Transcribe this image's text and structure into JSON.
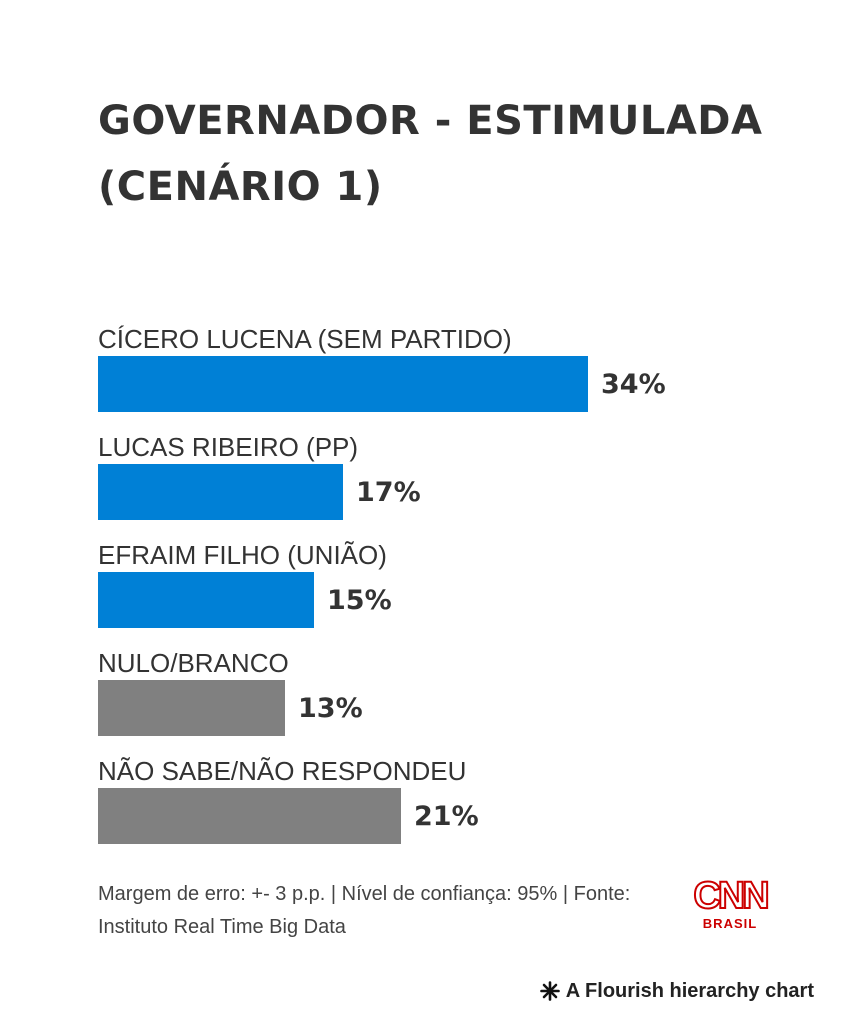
{
  "chart_data": {
    "type": "bar",
    "orientation": "horizontal",
    "title": "GOVERNADOR - ESTIMULADA (CENÁRIO 1)",
    "categories": [
      "CÍCERO LUCENA (SEM PARTIDO)",
      "LUCAS RIBEIRO (PP)",
      "EFRAIM FILHO (UNIÃO)",
      "NULO/BRANCO",
      "NÃO SABE/NÃO RESPONDEU"
    ],
    "values": [
      34,
      17,
      15,
      13,
      21
    ],
    "value_labels": [
      "34%",
      "17%",
      "15%",
      "13%",
      "21%"
    ],
    "unit": "%",
    "bar_colors": [
      "#0080d6",
      "#0080d6",
      "#0080d6",
      "#808080",
      "#808080"
    ],
    "xlim": [
      0,
      34
    ],
    "grid": false,
    "legend": "none"
  },
  "footnote": "Margem de erro: +- 3 p.p. | Nível de confiança: 95% | Fonte: Instituto Real Time Big Data",
  "logo": {
    "top": "CNN",
    "bottom": "BRASIL",
    "color": "#cc0000"
  },
  "credit": {
    "text": "A Flourish hierarchy chart",
    "icon": "flourish-asterisk-icon"
  }
}
